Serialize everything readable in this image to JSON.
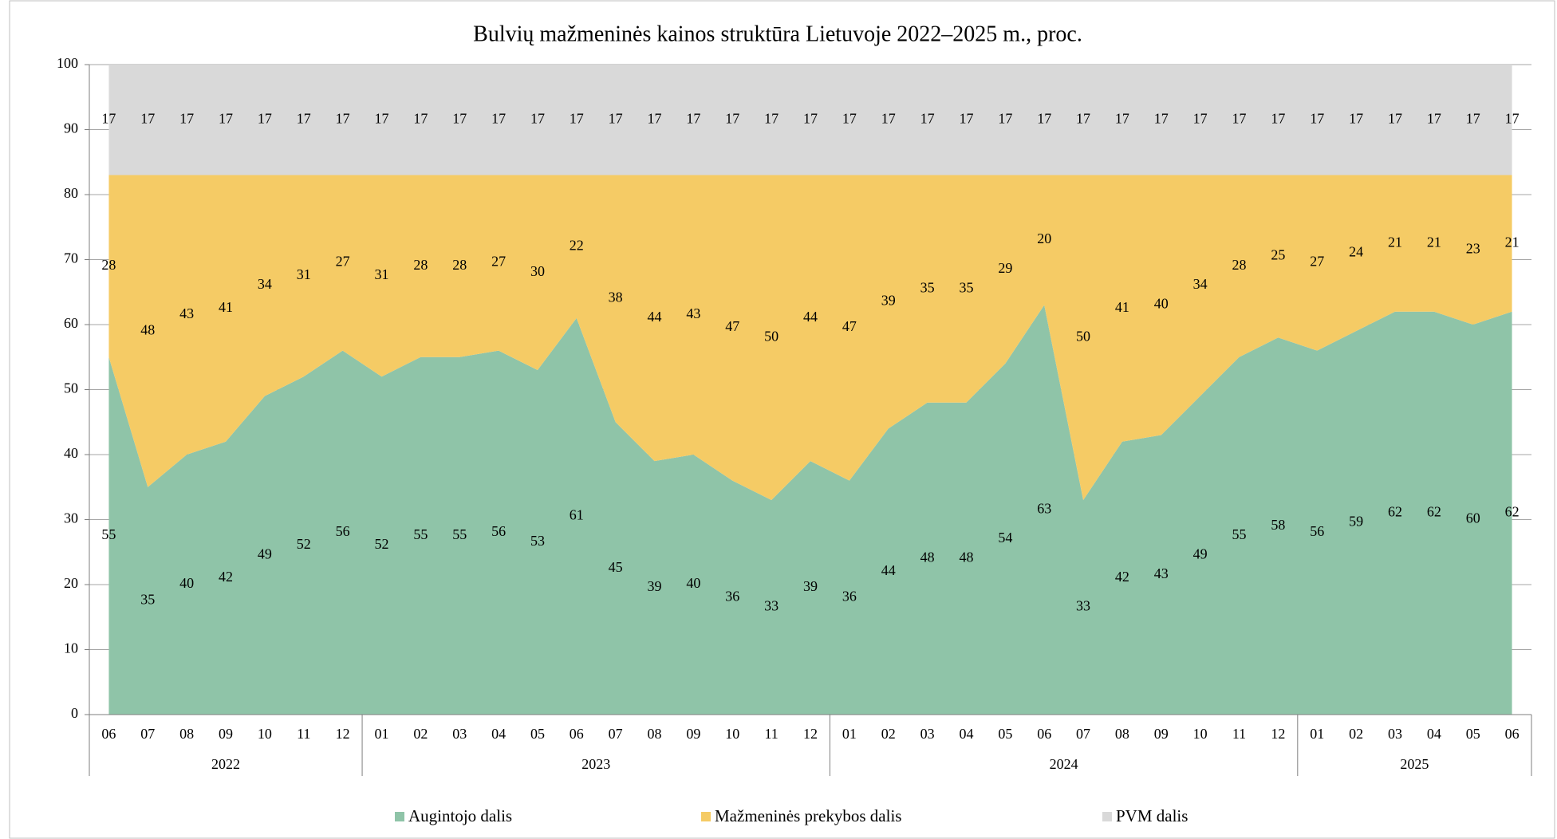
{
  "chart_data": {
    "type": "stacked_area",
    "title": "Bulvių mažmeninės kainos struktūra Lietuvoje 2022–2025 m., proc.",
    "year_groups": [
      {
        "label": "2022",
        "months": [
          "06",
          "07",
          "08",
          "09",
          "10",
          "11",
          "12"
        ]
      },
      {
        "label": "2023",
        "months": [
          "01",
          "02",
          "03",
          "04",
          "05",
          "06",
          "07",
          "08",
          "09",
          "10",
          "11",
          "12"
        ]
      },
      {
        "label": "2024",
        "months": [
          "01",
          "02",
          "03",
          "04",
          "05",
          "06",
          "07",
          "08",
          "09",
          "10",
          "11",
          "12"
        ]
      },
      {
        "label": "2025",
        "months": [
          "01",
          "02",
          "03",
          "04",
          "05",
          "06"
        ]
      }
    ],
    "series": [
      {
        "name": "Augintojo dalis",
        "color": "#8fc4a8",
        "values": [
          55,
          35,
          40,
          42,
          49,
          52,
          56,
          52,
          55,
          55,
          56,
          53,
          61,
          45,
          39,
          40,
          36,
          33,
          39,
          36,
          44,
          48,
          48,
          54,
          63,
          33,
          42,
          43,
          49,
          55,
          58,
          56,
          59,
          62,
          62,
          60,
          62
        ]
      },
      {
        "name": "Mažmeninės prekybos dalis",
        "color": "#f5cb65",
        "values": [
          28,
          48,
          43,
          41,
          34,
          31,
          27,
          31,
          28,
          28,
          27,
          30,
          22,
          38,
          44,
          43,
          47,
          50,
          44,
          47,
          39,
          35,
          35,
          29,
          20,
          50,
          41,
          40,
          34,
          28,
          25,
          27,
          24,
          21,
          21,
          23,
          21
        ]
      },
      {
        "name": "PVM dalis",
        "color": "#d9d9d9",
        "values": [
          17,
          17,
          17,
          17,
          17,
          17,
          17,
          17,
          17,
          17,
          17,
          17,
          17,
          17,
          17,
          17,
          17,
          17,
          17,
          17,
          17,
          17,
          17,
          17,
          17,
          17,
          17,
          17,
          17,
          17,
          17,
          17,
          17,
          17,
          17,
          17,
          17
        ]
      }
    ],
    "ylim": [
      0,
      100
    ],
    "yticks": [
      0,
      10,
      20,
      30,
      40,
      50,
      60,
      70,
      80,
      90,
      100
    ],
    "grid": true,
    "legend": "bottom"
  }
}
